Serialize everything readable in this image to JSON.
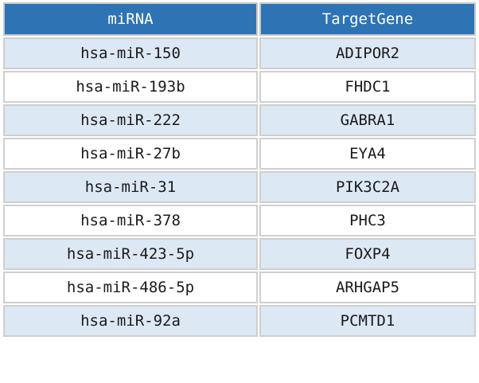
{
  "table": {
    "headers": [
      "miRNA",
      "TargetGene"
    ],
    "rows": [
      [
        "hsa-miR-150",
        "ADIPOR2"
      ],
      [
        "hsa-miR-193b",
        "FHDC1"
      ],
      [
        "hsa-miR-222",
        "GABRA1"
      ],
      [
        "hsa-miR-27b",
        "EYA4"
      ],
      [
        "hsa-miR-31",
        "PIK3C2A"
      ],
      [
        "hsa-miR-378",
        "PHC3"
      ],
      [
        "hsa-miR-423-5p",
        "FOXP4"
      ],
      [
        "hsa-miR-486-5p",
        "ARHGAP5"
      ],
      [
        "hsa-miR-92a",
        "PCMTD1"
      ]
    ]
  },
  "colors": {
    "header_bg": "#2e74b5",
    "header_text": "#ffffff",
    "row_shaded": "#dde8f5",
    "row_plain": "#ffffff"
  }
}
